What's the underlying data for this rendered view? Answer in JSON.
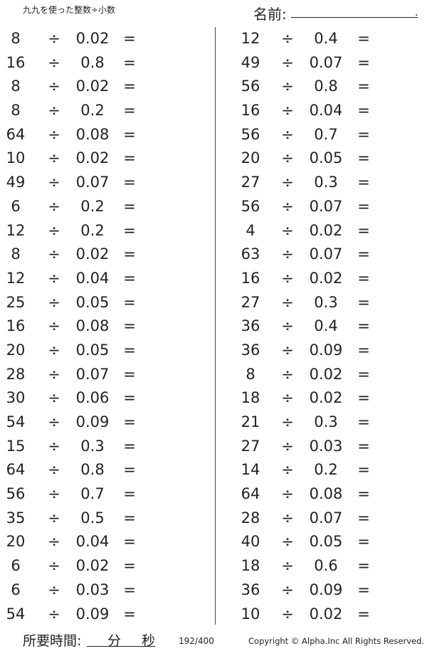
{
  "title": "九九を使った整数÷小数",
  "name_label": "名前:",
  "name_dot": ".",
  "operator": "÷",
  "equals": "=",
  "left_problems": [
    [
      "8",
      "0.02"
    ],
    [
      "16",
      "0.8"
    ],
    [
      "8",
      "0.02"
    ],
    [
      "8",
      "0.2"
    ],
    [
      "64",
      "0.08"
    ],
    [
      "10",
      "0.02"
    ],
    [
      "49",
      "0.07"
    ],
    [
      "6",
      "0.2"
    ],
    [
      "12",
      "0.2"
    ],
    [
      "8",
      "0.02"
    ],
    [
      "12",
      "0.04"
    ],
    [
      "25",
      "0.05"
    ],
    [
      "16",
      "0.08"
    ],
    [
      "20",
      "0.05"
    ],
    [
      "28",
      "0.07"
    ],
    [
      "30",
      "0.06"
    ],
    [
      "54",
      "0.09"
    ],
    [
      "15",
      "0.3"
    ],
    [
      "64",
      "0.8"
    ],
    [
      "56",
      "0.7"
    ],
    [
      "35",
      "0.5"
    ],
    [
      "20",
      "0.04"
    ],
    [
      "6",
      "0.02"
    ],
    [
      "6",
      "0.03"
    ],
    [
      "54",
      "0.09"
    ]
  ],
  "right_problems": [
    [
      "12",
      "0.4"
    ],
    [
      "49",
      "0.07"
    ],
    [
      "56",
      "0.8"
    ],
    [
      "16",
      "0.04"
    ],
    [
      "56",
      "0.7"
    ],
    [
      "20",
      "0.05"
    ],
    [
      "27",
      "0.3"
    ],
    [
      "56",
      "0.07"
    ],
    [
      "4",
      "0.02"
    ],
    [
      "63",
      "0.07"
    ],
    [
      "16",
      "0.02"
    ],
    [
      "27",
      "0.3"
    ],
    [
      "36",
      "0.4"
    ],
    [
      "36",
      "0.09"
    ],
    [
      "8",
      "0.02"
    ],
    [
      "18",
      "0.02"
    ],
    [
      "21",
      "0.3"
    ],
    [
      "27",
      "0.03"
    ],
    [
      "14",
      "0.2"
    ],
    [
      "64",
      "0.08"
    ],
    [
      "28",
      "0.07"
    ],
    [
      "40",
      "0.05"
    ],
    [
      "18",
      "0.6"
    ],
    [
      "36",
      "0.09"
    ],
    [
      "10",
      "0.02"
    ]
  ],
  "footer": {
    "time_label": "所要時間:",
    "minutes": "分",
    "seconds": "秒",
    "page": "192/400",
    "copyright": "Copyright © Alpha.Inc All Rights Reserved."
  }
}
